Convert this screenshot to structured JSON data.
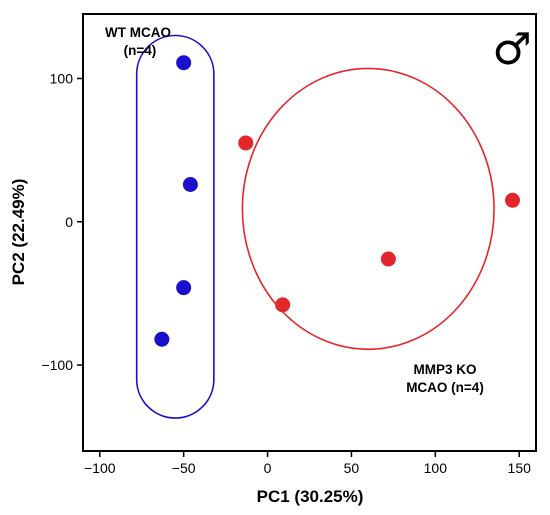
{
  "chart_data": {
    "type": "scatter",
    "title": "",
    "xlabel": "PC1 (30.25%)",
    "ylabel": "PC2 (22.49%)",
    "xlim": [
      -110,
      160
    ],
    "ylim": [
      -160,
      145
    ],
    "xticks": [
      -100,
      -50,
      0,
      50,
      100,
      150
    ],
    "yticks": [
      -100,
      0,
      100
    ],
    "xtick_labels": [
      "−100",
      "−50",
      "0",
      "50",
      "100",
      "150"
    ],
    "ytick_labels": [
      "−100",
      "0",
      "100"
    ],
    "grid": false,
    "series": [
      {
        "name": "WT MCAO (n=4)",
        "color": "#1a0fcc",
        "x": [
          -50,
          -46,
          -50,
          -63
        ],
        "y": [
          111,
          26,
          -46,
          -82
        ]
      },
      {
        "name": "MMP3 KO MCAO (n=4)",
        "color": "#e3262b",
        "x": [
          -13,
          9,
          72,
          146
        ],
        "y": [
          55,
          -58,
          -26,
          15
        ]
      }
    ],
    "annotations": {
      "wt_line1": "WT MCAO",
      "wt_line2": "(n=4)",
      "ko_line1": "MMP3 KO",
      "ko_line2": "MCAO (n=4)",
      "symbol": "♂"
    }
  }
}
